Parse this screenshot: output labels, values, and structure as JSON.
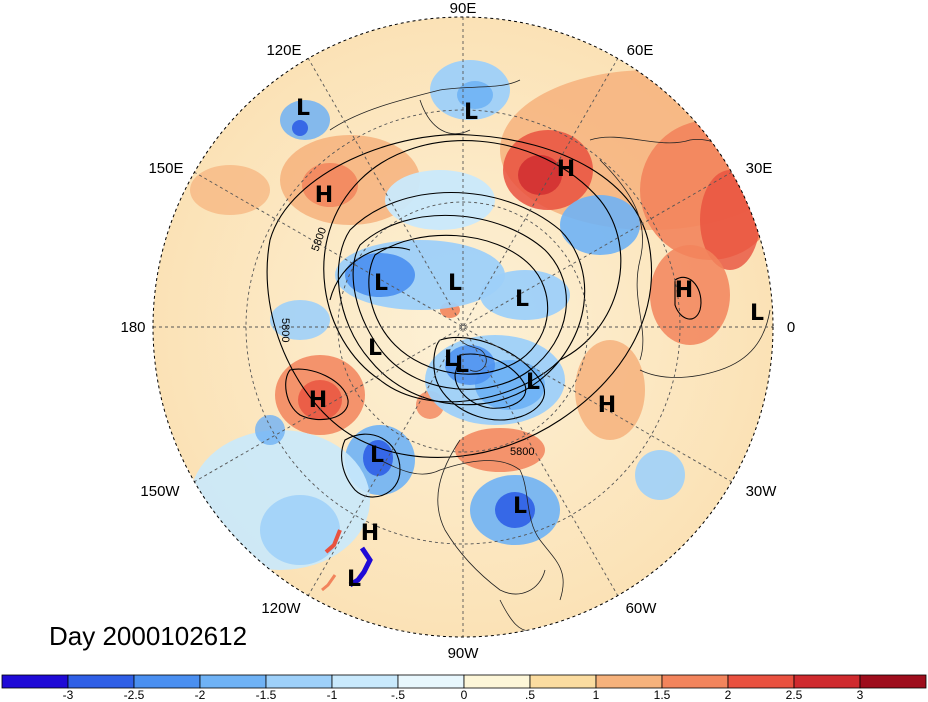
{
  "title": "Day 2000102612",
  "longitude_labels": {
    "top": "90E",
    "upper_left": "120E",
    "upper_right": "60E",
    "left_upper": "150E",
    "right_upper": "30E",
    "left": "180",
    "right": "0",
    "left_lower": "150W",
    "right_lower": "30W",
    "lower_left": "120W",
    "lower_right": "60W",
    "bottom": "90W"
  },
  "contour_labels": [
    "5800",
    "5800",
    "5800"
  ],
  "pressure_centers": [
    {
      "type": "L",
      "label": "L"
    },
    {
      "type": "H",
      "label": "H"
    },
    {
      "type": "L",
      "label": "L"
    },
    {
      "type": "H",
      "label": "H"
    },
    {
      "type": "L",
      "label": "L"
    },
    {
      "type": "L",
      "label": "L"
    },
    {
      "type": "L",
      "label": "L"
    },
    {
      "type": "H",
      "label": "H"
    },
    {
      "type": "L",
      "label": "L"
    },
    {
      "type": "L",
      "label": "L"
    },
    {
      "type": "L",
      "label": "L"
    },
    {
      "type": "L",
      "label": "L"
    },
    {
      "type": "H",
      "label": "H"
    },
    {
      "type": "H",
      "label": "H"
    },
    {
      "type": "L",
      "label": "L"
    },
    {
      "type": "L",
      "label": "L"
    },
    {
      "type": "H",
      "label": "H"
    },
    {
      "type": "L",
      "label": "L"
    },
    {
      "type": "L",
      "label": "L"
    }
  ],
  "colorbar": {
    "ticks": [
      "-3",
      "-2.5",
      "-2",
      "-1.5",
      "-1",
      "-.5",
      "0",
      ".5",
      "1",
      "1.5",
      "2",
      "2.5",
      "3"
    ],
    "colors": [
      "#1f0ad6",
      "#2f5fe6",
      "#4a8ff0",
      "#6fb2f5",
      "#9ed0f9",
      "#c9e9fc",
      "#e8f7fd",
      "#fdf6d8",
      "#fbdca0",
      "#f6b27c",
      "#f2845c",
      "#e9513f",
      "#cf2a2e",
      "#9e0d1c"
    ]
  },
  "colors": {
    "ocean_neutral": "#fdf0d4",
    "warm": "#f3a170",
    "hot": "#e64b3b",
    "cool": "#a8d8f7",
    "cold": "#3f84e8"
  }
}
